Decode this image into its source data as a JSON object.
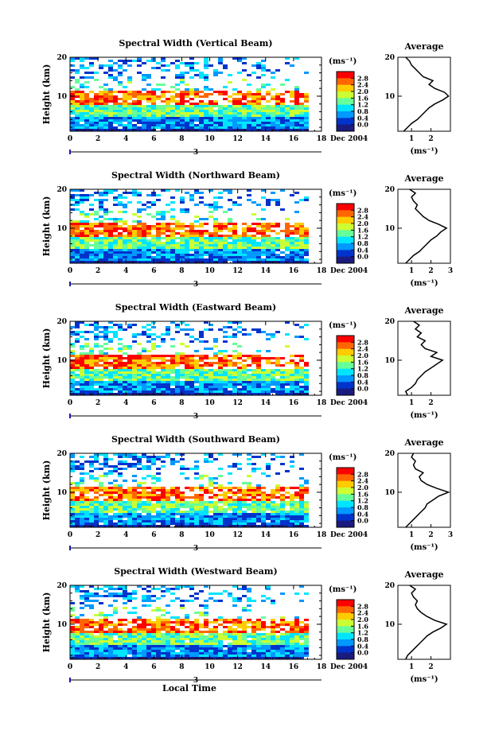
{
  "chart_data": [
    {
      "type": "heatmap",
      "title": "Spectral Width (Vertical Beam)",
      "ylabel": "Height (km)",
      "xticks": [
        "0",
        "2",
        "4",
        "6",
        "8",
        "10",
        "12",
        "14",
        "16",
        "18"
      ],
      "yticks": [
        "20",
        "10"
      ],
      "xlim": [
        0,
        18
      ],
      "ylim": [
        1,
        20
      ],
      "data_end_x": 17,
      "date_label": "Dec 2004",
      "day_marker": "3",
      "colorbar": {
        "unit": "(ms⁻¹)",
        "labels": [
          "2.8",
          "2.4",
          "2.0",
          "1.6",
          "1.2",
          "0.8",
          "0.4",
          "0.0"
        ],
        "colors": [
          "#ff0000",
          "#ff6600",
          "#ffcc00",
          "#ccff33",
          "#66ff99",
          "#00e5ff",
          "#0099ff",
          "#0033cc",
          "#1a1a80"
        ]
      },
      "average": {
        "title": "Average",
        "unit": "(ms⁻¹)",
        "xticks": [
          "1",
          "2"
        ],
        "xlim": [
          0.3,
          3.0
        ],
        "profile": [
          [
            0.6,
            1
          ],
          [
            0.8,
            2
          ],
          [
            1.0,
            3
          ],
          [
            1.3,
            4
          ],
          [
            1.5,
            5
          ],
          [
            1.7,
            6
          ],
          [
            1.9,
            7
          ],
          [
            2.2,
            8
          ],
          [
            2.6,
            9
          ],
          [
            2.9,
            10
          ],
          [
            2.7,
            11
          ],
          [
            2.2,
            12
          ],
          [
            1.9,
            13
          ],
          [
            2.1,
            14
          ],
          [
            1.6,
            15
          ],
          [
            1.4,
            16
          ],
          [
            1.2,
            17
          ],
          [
            1.0,
            18
          ],
          [
            0.9,
            19
          ],
          [
            0.7,
            20
          ]
        ]
      }
    },
    {
      "type": "heatmap",
      "title": "Spectral Width (Northward Beam)",
      "ylabel": "Height (km)",
      "xticks": [
        "0",
        "2",
        "4",
        "6",
        "8",
        "10",
        "12",
        "14",
        "16",
        "18"
      ],
      "yticks": [
        "20",
        "10"
      ],
      "xlim": [
        0,
        18
      ],
      "ylim": [
        1,
        20
      ],
      "data_end_x": 17,
      "date_label": "Dec 2004",
      "day_marker": "3",
      "colorbar": {
        "unit": "(ms⁻¹)",
        "labels": [
          "2.8",
          "2.4",
          "2.0",
          "1.6",
          "1.2",
          "0.8",
          "0.4",
          "0.0"
        ],
        "colors": [
          "#ff0000",
          "#ff6600",
          "#ffcc00",
          "#ccff33",
          "#66ff99",
          "#00e5ff",
          "#0099ff",
          "#0033cc",
          "#1a1a80"
        ]
      },
      "average": {
        "title": "Average",
        "unit": "(ms⁻¹)",
        "xticks": [
          "1",
          "2",
          "3"
        ],
        "xlim": [
          0.3,
          3.0
        ],
        "profile": [
          [
            0.7,
            1
          ],
          [
            0.9,
            2
          ],
          [
            1.1,
            3
          ],
          [
            1.4,
            4
          ],
          [
            1.6,
            5
          ],
          [
            1.8,
            6
          ],
          [
            2.0,
            7
          ],
          [
            2.3,
            8
          ],
          [
            2.5,
            9
          ],
          [
            2.8,
            10
          ],
          [
            2.4,
            11
          ],
          [
            1.9,
            12
          ],
          [
            1.6,
            13
          ],
          [
            1.4,
            14
          ],
          [
            1.2,
            15
          ],
          [
            1.3,
            16
          ],
          [
            1.1,
            17
          ],
          [
            1.0,
            18
          ],
          [
            1.2,
            19
          ],
          [
            0.9,
            20
          ]
        ]
      }
    },
    {
      "type": "heatmap",
      "title": "Spectral Width (Eastward Beam)",
      "ylabel": "Height (km)",
      "xticks": [
        "0",
        "2",
        "4",
        "6",
        "8",
        "10",
        "12",
        "14",
        "16",
        "18"
      ],
      "yticks": [
        "20",
        "10"
      ],
      "xlim": [
        0,
        18
      ],
      "ylim": [
        1,
        20
      ],
      "data_end_x": 17,
      "date_label": "Dec 2004",
      "day_marker": "3",
      "colorbar": {
        "unit": "(ms⁻¹)",
        "labels": [
          "2.8",
          "2.4",
          "2.0",
          "1.6",
          "1.2",
          "0.8",
          "0.4",
          "0.0"
        ],
        "colors": [
          "#ff0000",
          "#ff6600",
          "#ffcc00",
          "#ccff33",
          "#66ff99",
          "#00e5ff",
          "#0099ff",
          "#0033cc",
          "#1a1a80"
        ]
      },
      "average": {
        "title": "Average",
        "unit": "(ms⁻¹)",
        "xticks": [
          "1",
          "2"
        ],
        "xlim": [
          0.3,
          3.0
        ],
        "profile": [
          [
            0.8,
            1
          ],
          [
            0.7,
            2
          ],
          [
            1.0,
            3
          ],
          [
            1.2,
            4
          ],
          [
            1.3,
            5
          ],
          [
            1.5,
            6
          ],
          [
            1.7,
            7
          ],
          [
            2.0,
            8
          ],
          [
            2.3,
            9
          ],
          [
            2.6,
            10
          ],
          [
            2.0,
            11
          ],
          [
            2.3,
            12
          ],
          [
            1.7,
            13
          ],
          [
            1.5,
            14
          ],
          [
            1.7,
            15
          ],
          [
            1.3,
            16
          ],
          [
            1.5,
            17
          ],
          [
            1.2,
            18
          ],
          [
            1.4,
            19
          ],
          [
            1.1,
            20
          ]
        ]
      }
    },
    {
      "type": "heatmap",
      "title": "Spectral Width (Southward Beam)",
      "ylabel": "Height (km)",
      "xticks": [
        "0",
        "2",
        "4",
        "6",
        "8",
        "10",
        "12",
        "14",
        "16",
        "18"
      ],
      "yticks": [
        "20",
        "10"
      ],
      "xlim": [
        0,
        18
      ],
      "ylim": [
        1,
        20
      ],
      "data_end_x": 17,
      "date_label": "Dec 2004",
      "day_marker": "3",
      "colorbar": {
        "unit": "(ms⁻¹)",
        "labels": [
          "2.8",
          "2.4",
          "2.0",
          "1.6",
          "1.2",
          "0.8",
          "0.4",
          "0.0"
        ],
        "colors": [
          "#ff0000",
          "#ff6600",
          "#ffcc00",
          "#ccff33",
          "#66ff99",
          "#00e5ff",
          "#0099ff",
          "#0033cc",
          "#1a1a80"
        ]
      },
      "average": {
        "title": "Average",
        "unit": "(ms⁻¹)",
        "xticks": [
          "1",
          "2",
          "3"
        ],
        "xlim": [
          0.3,
          3.0
        ],
        "profile": [
          [
            0.7,
            1
          ],
          [
            0.9,
            2
          ],
          [
            1.1,
            3
          ],
          [
            1.3,
            4
          ],
          [
            1.5,
            5
          ],
          [
            1.7,
            6
          ],
          [
            1.8,
            7
          ],
          [
            2.1,
            8
          ],
          [
            2.4,
            9
          ],
          [
            2.9,
            10
          ],
          [
            2.3,
            11
          ],
          [
            1.8,
            12
          ],
          [
            1.5,
            13
          ],
          [
            1.4,
            14
          ],
          [
            1.6,
            15
          ],
          [
            1.2,
            16
          ],
          [
            1.1,
            17
          ],
          [
            1.2,
            18
          ],
          [
            1.0,
            19
          ],
          [
            1.1,
            20
          ]
        ]
      }
    },
    {
      "type": "heatmap",
      "title": "Spectral Width (Westward Beam)",
      "ylabel": "Height (km)",
      "xticks": [
        "0",
        "2",
        "4",
        "6",
        "8",
        "10",
        "12",
        "14",
        "16",
        "18"
      ],
      "yticks": [
        "20",
        "10"
      ],
      "xlim": [
        0,
        18
      ],
      "ylim": [
        1,
        20
      ],
      "data_end_x": 17,
      "date_label": "Dec 2004",
      "day_marker": "3",
      "xlabel": "Local Time",
      "colorbar": {
        "unit": "(ms⁻¹)",
        "labels": [
          "2.8",
          "2.4",
          "2.0",
          "1.6",
          "1.2",
          "0.8",
          "0.4",
          "0.0"
        ],
        "colors": [
          "#ff0000",
          "#ff6600",
          "#ffcc00",
          "#ccff33",
          "#66ff99",
          "#00e5ff",
          "#0099ff",
          "#0033cc",
          "#1a1a80"
        ]
      },
      "average": {
        "title": "Average",
        "unit": "(ms⁻¹)",
        "xticks": [
          "1",
          "2"
        ],
        "xlim": [
          0.3,
          3.0
        ],
        "profile": [
          [
            0.7,
            1
          ],
          [
            0.8,
            2
          ],
          [
            1.0,
            3
          ],
          [
            1.2,
            4
          ],
          [
            1.4,
            5
          ],
          [
            1.6,
            6
          ],
          [
            1.8,
            7
          ],
          [
            2.1,
            8
          ],
          [
            2.5,
            9
          ],
          [
            2.8,
            10
          ],
          [
            2.2,
            11
          ],
          [
            1.8,
            12
          ],
          [
            1.5,
            13
          ],
          [
            1.3,
            14
          ],
          [
            1.2,
            15
          ],
          [
            1.3,
            16
          ],
          [
            1.1,
            17
          ],
          [
            1.0,
            18
          ],
          [
            1.2,
            19
          ],
          [
            0.9,
            20
          ]
        ]
      }
    }
  ]
}
